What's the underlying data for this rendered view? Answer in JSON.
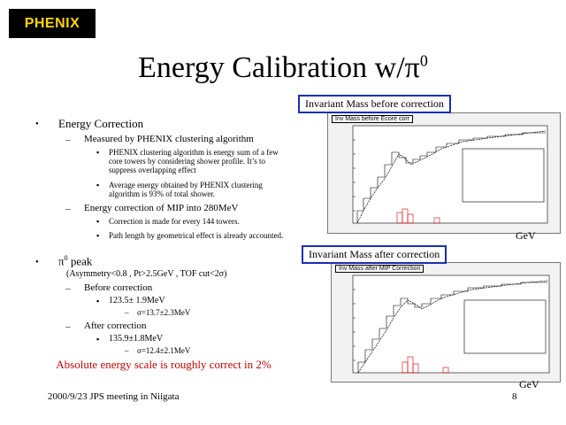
{
  "logo": {
    "text": "PHENIX"
  },
  "title": "Energy Calibration w/π",
  "title_sup": "0",
  "section1": {
    "heading": "Energy Correction",
    "sub1": "Measured by PHENIX clustering algorithm",
    "sub1_items": [
      "PHENIX clustering algorithm is energy sum of a few core towers by considering shower profile. It’s to suppress overlapping effect",
      "Average energy obtained by PHENIX clustering algorithm is 93% of total shower."
    ],
    "sub2": "Energy correction of MIP into 280MeV",
    "sub2_items": [
      "Correction is made for every 144 towers.",
      "Path length by geometrical effect is already accounted."
    ]
  },
  "section2": {
    "heading_pi": "π",
    "heading_sup": "0",
    "heading_rest": " peak",
    "cuts": "(Asymmetry<0.8 , Pt>2.5GeV , TOF cut<2σ)",
    "before_label": "Before correction",
    "before_value": "123.5± 1.9MeV",
    "before_sigma": "σ=13.7±2.3MeV",
    "after_label": "After correction",
    "after_value": "135.9±1.8MeV",
    "after_sigma": "σ=12.4±2.1MeV"
  },
  "conclusion": "Absolute energy scale is roughly correct in 2%",
  "footer": "2000/9/23 JPS meeting in Niigata",
  "page_number": "8",
  "plot_top": {
    "caption": "Invariant Mass before correction",
    "header": "Inv Mass before Ecore corr",
    "unit": "GeV"
  },
  "plot_bottom": {
    "caption": "Invariant Mass after correction",
    "header": "Inv Mass after MIP Correction",
    "unit": "GeV"
  }
}
